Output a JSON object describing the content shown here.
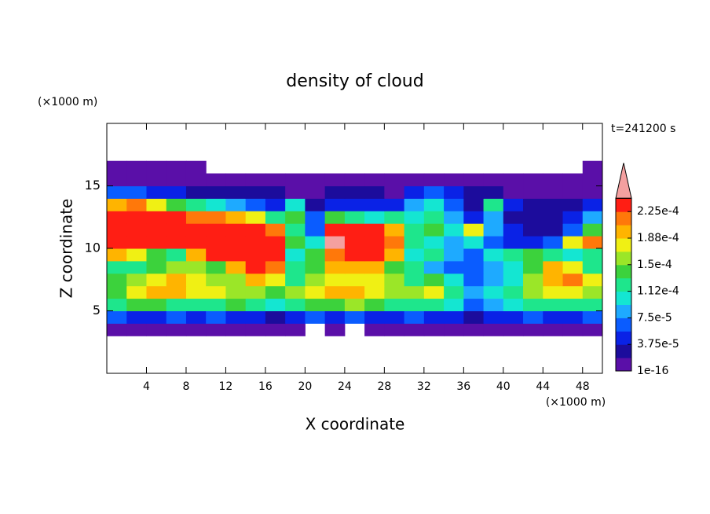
{
  "chart_data": {
    "type": "contour",
    "title": "density of cloud",
    "annotation": "t=241200 s",
    "x_label": "X coordinate",
    "y_label": "Z coordinate",
    "x_unit": "(×1000 m)",
    "y_unit": "(×1000 m)",
    "xlim": [
      0,
      50
    ],
    "ylim": [
      0,
      20
    ],
    "xticks": [
      4,
      8,
      12,
      16,
      20,
      24,
      28,
      32,
      36,
      40,
      44,
      48
    ],
    "yticks": [
      5,
      10,
      15
    ],
    "levels": [
      1e-16,
      1.875e-05,
      3.75e-05,
      5.625e-05,
      7.5e-05,
      9.375e-05,
      0.0001125,
      0.00013125,
      0.00015,
      0.00016875,
      0.0001875,
      0.00020625,
      0.000225,
      0.00024375
    ],
    "colorbar_ticks": [
      {
        "value": 1e-16,
        "label": "1e-16"
      },
      {
        "value": 3.75e-05,
        "label": "3.75e-5"
      },
      {
        "value": 7.5e-05,
        "label": "7.5e-5"
      },
      {
        "value": 0.0001125,
        "label": "1.12e-4"
      },
      {
        "value": 0.00015,
        "label": "1.5e-4"
      },
      {
        "value": 0.0001875,
        "label": "1.88e-4"
      },
      {
        "value": 0.000225,
        "label": "2.25e-4"
      }
    ],
    "colors": [
      "#5a0fa8",
      "#1c0c9c",
      "#0a22e6",
      "#0a5cff",
      "#1eaaff",
      "#14e6d2",
      "#1ee68c",
      "#3cd23c",
      "#9be628",
      "#f0f014",
      "#ffb400",
      "#ff780a",
      "#ff1e14"
    ],
    "extend_color": "#f4a0a0",
    "field": {
      "x": [
        1,
        3,
        5,
        7,
        9,
        11,
        13,
        15,
        17,
        19,
        21,
        23,
        25,
        27,
        29,
        31,
        33,
        35,
        37,
        39,
        41,
        43,
        45,
        47,
        49
      ],
      "z": [
        3.5,
        4.5,
        5.5,
        6.5,
        7.5,
        8.5,
        9.5,
        10.5,
        11.5,
        12.5,
        13.5,
        14.5,
        15.5,
        16.5
      ],
      "values": [
        [
          1e-05,
          1e-05,
          1e-05,
          1e-05,
          1e-05,
          1e-05,
          1e-05,
          1e-05,
          1e-05,
          1e-05,
          null,
          1e-05,
          null,
          1e-05,
          1e-05,
          1e-05,
          1e-05,
          1e-05,
          1e-05,
          1e-05,
          1e-05,
          1e-05,
          1e-05,
          1e-05,
          1e-05
        ],
        [
          6.5e-05,
          4.7e-05,
          4.7e-05,
          6.5e-05,
          4.7e-05,
          6.5e-05,
          4.7e-05,
          4.7e-05,
          2.8e-05,
          4.7e-05,
          6.5e-05,
          4.7e-05,
          6.5e-05,
          4.7e-05,
          4.7e-05,
          6.5e-05,
          4.7e-05,
          4.7e-05,
          2.8e-05,
          4.7e-05,
          4.7e-05,
          6.5e-05,
          4.7e-05,
          4.7e-05,
          6.5e-05
        ],
        [
          0.000122,
          0.00014,
          0.00014,
          0.000122,
          0.000122,
          0.000122,
          0.00014,
          0.000122,
          0.000103,
          0.000122,
          0.00014,
          0.00014,
          0.00016,
          0.00014,
          0.000122,
          0.000122,
          0.000122,
          0.000103,
          6.5e-05,
          8.4e-05,
          0.000103,
          0.000122,
          0.000122,
          0.000122,
          0.000122
        ],
        [
          0.00014,
          0.000178,
          0.000197,
          0.000197,
          0.000178,
          0.000178,
          0.00016,
          0.00016,
          0.00014,
          0.00016,
          0.000178,
          0.000197,
          0.000197,
          0.000178,
          0.00016,
          0.00016,
          0.000178,
          0.000122,
          8.4e-05,
          0.000103,
          0.000122,
          0.00016,
          0.000178,
          0.000178,
          0.00016
        ],
        [
          0.00014,
          0.00016,
          0.000178,
          0.000197,
          0.000178,
          0.00016,
          0.00016,
          0.000197,
          0.000178,
          0.000122,
          0.00016,
          0.000178,
          0.000178,
          0.000178,
          0.00016,
          0.000122,
          0.00014,
          0.000103,
          6.5e-05,
          8.4e-05,
          0.000103,
          0.00016,
          0.000197,
          0.000215,
          0.000178
        ],
        [
          0.000122,
          0.000122,
          0.00014,
          0.00016,
          0.00016,
          0.00014,
          0.000197,
          0.00023,
          0.000215,
          0.000122,
          0.00014,
          0.000197,
          0.000197,
          0.000197,
          0.00014,
          0.000122,
          8.4e-05,
          6.5e-05,
          6.5e-05,
          8.4e-05,
          0.000103,
          0.00014,
          0.000197,
          0.000178,
          0.000122
        ],
        [
          0.000197,
          0.000178,
          0.00014,
          0.000122,
          0.000197,
          0.00023,
          0.00023,
          0.00023,
          0.00023,
          0.000103,
          0.00014,
          0.000215,
          0.00023,
          0.00023,
          0.000197,
          0.000103,
          0.000122,
          8.4e-05,
          6.5e-05,
          0.000103,
          0.000122,
          0.00014,
          0.000122,
          0.000103,
          0.000122
        ],
        [
          0.00023,
          0.00023,
          0.00023,
          0.00023,
          0.00023,
          0.00023,
          0.00023,
          0.00023,
          0.00023,
          0.00014,
          0.000103,
          0.00025,
          0.00023,
          0.00023,
          0.000215,
          0.000122,
          0.000103,
          8.4e-05,
          0.000103,
          6.5e-05,
          4.7e-05,
          4.7e-05,
          6.5e-05,
          0.000178,
          0.000215
        ],
        [
          0.00023,
          0.00023,
          0.00023,
          0.00023,
          0.00023,
          0.00023,
          0.00023,
          0.00023,
          0.000215,
          0.000122,
          6.5e-05,
          0.00023,
          0.00023,
          0.00023,
          0.000197,
          0.000122,
          0.00014,
          0.000103,
          0.000178,
          8.4e-05,
          4.7e-05,
          2.8e-05,
          2.8e-05,
          6.5e-05,
          0.00014
        ],
        [
          0.00023,
          0.00023,
          0.00023,
          0.00023,
          0.000215,
          0.000215,
          0.000197,
          0.000178,
          0.000122,
          0.00014,
          6.5e-05,
          0.00014,
          0.000122,
          0.000103,
          0.000122,
          0.000103,
          0.000122,
          8.4e-05,
          4.7e-05,
          8.4e-05,
          2.8e-05,
          2.8e-05,
          2.8e-05,
          4.7e-05,
          8.4e-05
        ],
        [
          0.000197,
          0.000215,
          0.000178,
          0.00014,
          0.000122,
          0.000103,
          8.4e-05,
          6.5e-05,
          4.7e-05,
          0.000103,
          2.8e-05,
          4.7e-05,
          4.7e-05,
          4.7e-05,
          4.7e-05,
          8.4e-05,
          0.000103,
          6.5e-05,
          2.8e-05,
          0.000122,
          4.7e-05,
          2.8e-05,
          2.8e-05,
          2.8e-05,
          4.7e-05
        ],
        [
          6.5e-05,
          6.5e-05,
          4.7e-05,
          4.7e-05,
          2.8e-05,
          2.8e-05,
          2.8e-05,
          2.8e-05,
          2.8e-05,
          1e-05,
          1e-05,
          2.8e-05,
          2.8e-05,
          2.8e-05,
          1e-05,
          4.7e-05,
          6.5e-05,
          4.7e-05,
          2.8e-05,
          2.8e-05,
          1e-05,
          1e-05,
          1e-05,
          1e-05,
          1e-05
        ],
        [
          1e-05,
          1e-05,
          1e-05,
          1e-05,
          1e-05,
          1e-05,
          1e-05,
          1e-05,
          1e-05,
          1e-05,
          1e-05,
          1e-05,
          1e-05,
          1e-05,
          1e-05,
          1e-05,
          1e-05,
          1e-05,
          1e-05,
          1e-05,
          1e-05,
          1e-05,
          1e-05,
          1e-05,
          1e-05
        ],
        [
          1e-05,
          1e-05,
          1e-05,
          1e-05,
          1e-05,
          null,
          null,
          null,
          null,
          null,
          null,
          null,
          null,
          null,
          null,
          null,
          null,
          null,
          null,
          null,
          null,
          null,
          null,
          null,
          1e-05
        ]
      ]
    }
  }
}
